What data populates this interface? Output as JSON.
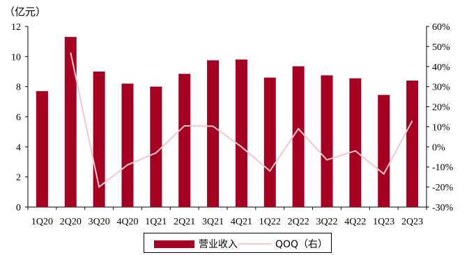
{
  "chart_data": {
    "type": "bar",
    "categories": [
      "1Q20",
      "2Q20",
      "3Q20",
      "4Q20",
      "1Q21",
      "2Q21",
      "3Q21",
      "4Q21",
      "1Q22",
      "2Q22",
      "3Q22",
      "4Q22",
      "1Q23",
      "2Q23"
    ],
    "series": [
      {
        "name": "营业收入",
        "type": "bar",
        "axis": "left",
        "color": "#a50021",
        "values": [
          7.7,
          11.3,
          9.0,
          8.2,
          8.0,
          8.85,
          9.75,
          9.8,
          8.6,
          9.35,
          8.75,
          8.55,
          7.45,
          8.4
        ]
      },
      {
        "name": "QOQ（右）",
        "type": "line",
        "axis": "right",
        "color": "#f4c7cf",
        "values": [
          null,
          47,
          -20,
          -9,
          -3,
          10.5,
          10.3,
          0,
          -12,
          9,
          -6.5,
          -2,
          -13.5,
          13
        ]
      }
    ],
    "y_left": {
      "min": 0,
      "max": 12,
      "step": 2,
      "unit": "（亿元）"
    },
    "y_right": {
      "min": -30,
      "max": 60,
      "step": 10,
      "format": "percent"
    },
    "grid": false,
    "legend_position": "bottom"
  }
}
